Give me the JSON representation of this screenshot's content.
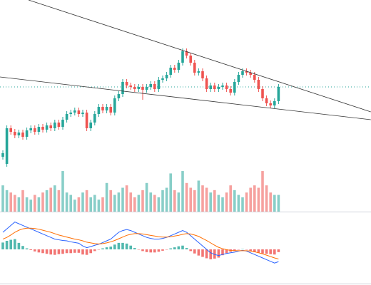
{
  "chart_data": {
    "type": "candlestick",
    "ylim": [
      0,
      300
    ],
    "open": [
      80,
      70,
      120,
      115,
      110,
      114,
      108,
      117,
      120,
      115,
      122,
      118,
      124,
      120,
      128,
      122,
      132,
      140,
      142,
      145,
      140,
      142,
      120,
      128,
      140,
      150,
      145,
      150,
      142,
      162,
      168,
      185,
      180,
      178,
      175,
      178,
      174,
      178,
      182,
      175,
      188,
      190,
      195,
      205,
      202,
      212,
      228,
      222,
      212,
      198,
      200,
      190,
      175,
      180,
      175,
      178,
      180,
      175,
      170,
      185,
      195,
      200,
      198,
      195,
      188,
      175,
      162,
      155,
      152,
      158
    ],
    "high": [
      89,
      124,
      124,
      119,
      118,
      118,
      121,
      124,
      124,
      126,
      126,
      128,
      128,
      132,
      132,
      136,
      144,
      146,
      149,
      149,
      146,
      146,
      132,
      144,
      154,
      154,
      154,
      154,
      166,
      172,
      189,
      189,
      184,
      182,
      182,
      182,
      182,
      186,
      186,
      192,
      194,
      199,
      209,
      209,
      216,
      232,
      232,
      226,
      216,
      204,
      204,
      194,
      184,
      184,
      182,
      184,
      184,
      179,
      189,
      199,
      204,
      204,
      202,
      199,
      192,
      179,
      166,
      159,
      162,
      182
    ],
    "low": [
      76,
      66,
      111,
      106,
      106,
      104,
      104,
      113,
      111,
      111,
      114,
      114,
      116,
      116,
      118,
      118,
      128,
      136,
      138,
      136,
      136,
      116,
      116,
      124,
      136,
      141,
      141,
      138,
      138,
      158,
      164,
      176,
      174,
      171,
      171,
      160,
      170,
      174,
      171,
      171,
      184,
      186,
      191,
      198,
      198,
      208,
      218,
      208,
      194,
      194,
      186,
      171,
      171,
      171,
      171,
      174,
      171,
      166,
      166,
      181,
      191,
      194,
      191,
      184,
      171,
      158,
      151,
      148,
      148,
      154
    ],
    "close": [
      85,
      120,
      115,
      110,
      114,
      108,
      117,
      120,
      115,
      122,
      118,
      124,
      120,
      128,
      122,
      132,
      140,
      142,
      145,
      140,
      142,
      120,
      128,
      140,
      150,
      145,
      150,
      142,
      162,
      168,
      185,
      180,
      178,
      175,
      178,
      174,
      178,
      182,
      175,
      188,
      190,
      195,
      205,
      202,
      212,
      228,
      222,
      212,
      198,
      200,
      190,
      175,
      180,
      175,
      178,
      180,
      175,
      170,
      185,
      195,
      200,
      198,
      195,
      188,
      175,
      162,
      155,
      152,
      158,
      178
    ],
    "up_color": "#26a69a",
    "down_color": "#ef5350",
    "volume_lim": [
      0,
      100
    ],
    "volume": [
      55,
      45,
      40,
      35,
      30,
      45,
      30,
      25,
      35,
      30,
      40,
      45,
      50,
      55,
      45,
      85,
      40,
      35,
      25,
      30,
      40,
      45,
      30,
      35,
      25,
      30,
      60,
      45,
      35,
      40,
      50,
      55,
      40,
      30,
      35,
      45,
      60,
      40,
      35,
      30,
      45,
      50,
      80,
      45,
      40,
      85,
      60,
      50,
      45,
      65,
      55,
      50,
      40,
      45,
      35,
      30,
      40,
      55,
      45,
      35,
      30,
      40,
      50,
      55,
      50,
      85,
      55,
      40,
      35,
      35
    ],
    "trendlines": [
      {
        "x": [
          6.43,
          92.1
        ],
        "y": [
          300,
          143
        ],
        "color": "#333333"
      },
      {
        "x": [
          -0.71,
          92.1
        ],
        "y": [
          192,
          132
        ],
        "color": "#333333"
      }
    ],
    "price_line": 178,
    "price_line_color": "#26a69a",
    "macd_lim": [
      -10,
      10
    ],
    "macd": [
      5,
      6,
      7,
      8,
      7.5,
      7,
      6.5,
      6,
      5.5,
      5,
      4.5,
      4,
      3.5,
      3,
      2.8,
      2.6,
      2.5,
      2.2,
      2,
      1.8,
      1,
      0.5,
      0.8,
      1.2,
      1.5,
      2,
      2.5,
      3,
      4,
      5,
      5.5,
      5.8,
      5.5,
      5,
      4.5,
      4,
      3.5,
      3.2,
      3,
      3,
      3.2,
      3.5,
      4,
      4.5,
      5,
      5.5,
      5,
      4,
      3,
      2,
      1,
      0,
      -1,
      -1.5,
      -1.8,
      -1.5,
      -1.2,
      -1,
      -0.8,
      -0.5,
      -0.3,
      -0.5,
      -1,
      -1.5,
      -2,
      -2.5,
      -3,
      -3.5,
      -4,
      -3.6
    ],
    "signal": [
      3,
      3.5,
      4.2,
      5,
      5.6,
      6,
      6.2,
      6.2,
      6.1,
      5.9,
      5.6,
      5.3,
      5,
      4.6,
      4.2,
      3.9,
      3.6,
      3.3,
      3,
      2.8,
      2.5,
      2.1,
      1.9,
      1.7,
      1.6,
      1.7,
      1.9,
      2.2,
      2.6,
      3.1,
      3.6,
      4.1,
      4.4,
      4.6,
      4.6,
      4.5,
      4.3,
      4.1,
      3.9,
      3.7,
      3.6,
      3.6,
      3.7,
      3.9,
      4.1,
      4.4,
      4.6,
      4.5,
      4.2,
      3.8,
      3.2,
      2.6,
      1.9,
      1.2,
      0.6,
      0.2,
      -0.1,
      -0.3,
      -0.4,
      -0.4,
      -0.4,
      -0.4,
      -0.5,
      -0.7,
      -1,
      -1.3,
      -1.7,
      -2.1,
      -2.5,
      -2.8
    ],
    "histogram": [
      2,
      2.5,
      2.8,
      3,
      1.9,
      1,
      0.3,
      -0.2,
      -0.6,
      -0.9,
      -1.1,
      -1.3,
      -1.5,
      -1.6,
      -1.4,
      -1.3,
      -1.1,
      -1.1,
      -1,
      -1,
      -1.5,
      -1.6,
      -1.1,
      -0.5,
      -0.1,
      0.3,
      0.6,
      0.8,
      1.4,
      1.9,
      1.9,
      1.7,
      1.1,
      0.4,
      -0.1,
      -0.5,
      -0.8,
      -0.9,
      -0.9,
      -0.7,
      -0.4,
      -0.1,
      0.3,
      0.6,
      0.9,
      1.1,
      0.4,
      -0.5,
      -1.2,
      -1.8,
      -2.2,
      -2.6,
      -2.9,
      -2.7,
      -2.4,
      -1.7,
      -1.1,
      -0.7,
      -0.4,
      -0.1,
      0.1,
      -0.1,
      -0.5,
      -0.8,
      -1,
      -1.2,
      -1.3,
      -1.4,
      -1.5,
      -0.8
    ],
    "macd_color": "#2962ff",
    "signal_color": "#ff6d00"
  }
}
